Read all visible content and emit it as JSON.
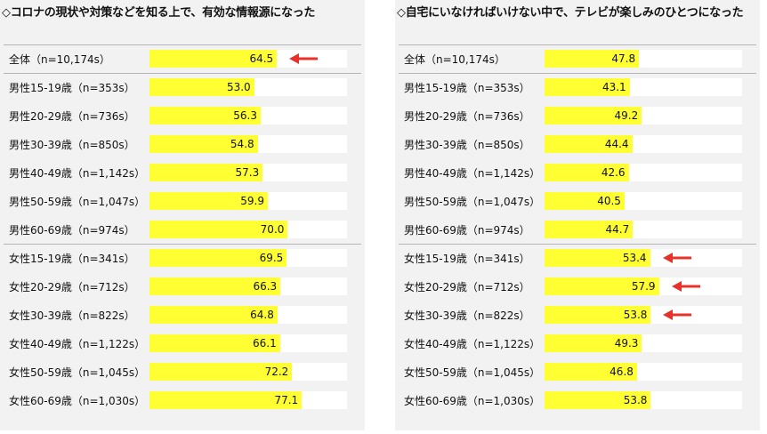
{
  "chart_data": [
    {
      "type": "bar",
      "title": "◇コロナの現状や対策などを知る上で、有効な情報源になった",
      "categories": [
        "全体（n=10,174s）",
        "男性15-19歳（n=353s）",
        "男性20-29歳（n=736s）",
        "男性30-39歳（n=850s）",
        "男性40-49歳（n=1,142s）",
        "男性50-59歳（n=1,047s）",
        "男性60-69歳（n=974s）",
        "女性15-19歳（n=341s）",
        "女性20-29歳（n=712s）",
        "女性30-39歳（n=822s）",
        "女性40-49歳（n=1,122s）",
        "女性50-59歳（n=1,045s）",
        "女性60-69歳（n=1,030s）"
      ],
      "values": [
        64.5,
        53.0,
        56.3,
        54.8,
        57.3,
        59.9,
        70.0,
        69.5,
        66.3,
        64.8,
        66.1,
        72.2,
        77.1
      ],
      "value_labels": [
        "64.5",
        "53.0",
        "56.3",
        "54.8",
        "57.3",
        "59.9",
        "70.0",
        "69.5",
        "66.3",
        "64.8",
        "66.1",
        "72.2",
        "77.1"
      ],
      "xlim": [
        0,
        100
      ],
      "highlighted": [
        0
      ],
      "bar_color": "#ffff33",
      "arrow_color": "#e8312a"
    },
    {
      "type": "bar",
      "title": "◇自宅にいなければいけない中で、テレビが楽しみのひとつになった",
      "categories": [
        "全体（n=10,174s）",
        "男性15-19歳（n=353s）",
        "男性20-29歳（n=736s）",
        "男性30-39歳（n=850s）",
        "男性40-49歳（n=1,142s）",
        "男性50-59歳（n=1,047s）",
        "男性60-69歳（n=974s）",
        "女性15-19歳（n=341s）",
        "女性20-29歳（n=712s）",
        "女性30-39歳（n=822s）",
        "女性40-49歳（n=1,122s）",
        "女性50-59歳（n=1,045s）",
        "女性60-69歳（n=1,030s）"
      ],
      "values": [
        47.8,
        43.1,
        49.2,
        44.4,
        42.6,
        40.5,
        44.7,
        53.4,
        57.9,
        53.8,
        49.3,
        46.8,
        53.8
      ],
      "value_labels": [
        "47.8",
        "43.1",
        "49.2",
        "44.4",
        "42.6",
        "40.5",
        "44.7",
        "53.4",
        "57.9",
        "53.8",
        "49.3",
        "46.8",
        "53.8"
      ],
      "xlim": [
        0,
        100
      ],
      "highlighted": [
        7,
        8,
        9
      ],
      "bar_color": "#ffff33",
      "arrow_color": "#e8312a"
    }
  ]
}
